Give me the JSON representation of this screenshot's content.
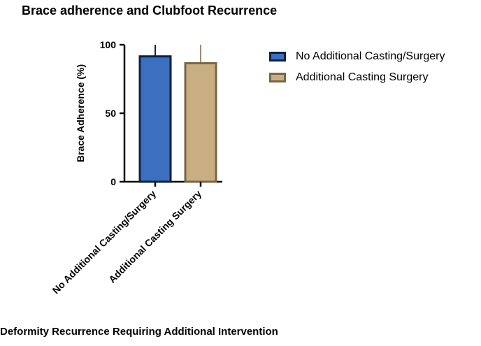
{
  "chart_data": {
    "type": "bar",
    "title": "Brace adherence and Clubfoot Recurrence",
    "xlabel": "Deformity Recurrence Requiring Additional Intervention",
    "ylabel": "Brace Adherence (%)",
    "ylim": [
      0,
      100
    ],
    "yticks": [
      "0",
      "50",
      "100"
    ],
    "categories": [
      "No Additional Casting/Surgery",
      "Additional Casting Surgery"
    ],
    "values": [
      91.5,
      86.5
    ],
    "error_upper": [
      100,
      100
    ],
    "colors": {
      "fills": [
        "#3b6fc0",
        "#c9ae84"
      ],
      "edges": [
        "#0f2140",
        "#7a6642"
      ]
    },
    "legend": {
      "placement": "right",
      "entries": [
        "No Additional Casting/Surgery",
        "Additional Casting Surgery"
      ]
    },
    "grid": false
  }
}
